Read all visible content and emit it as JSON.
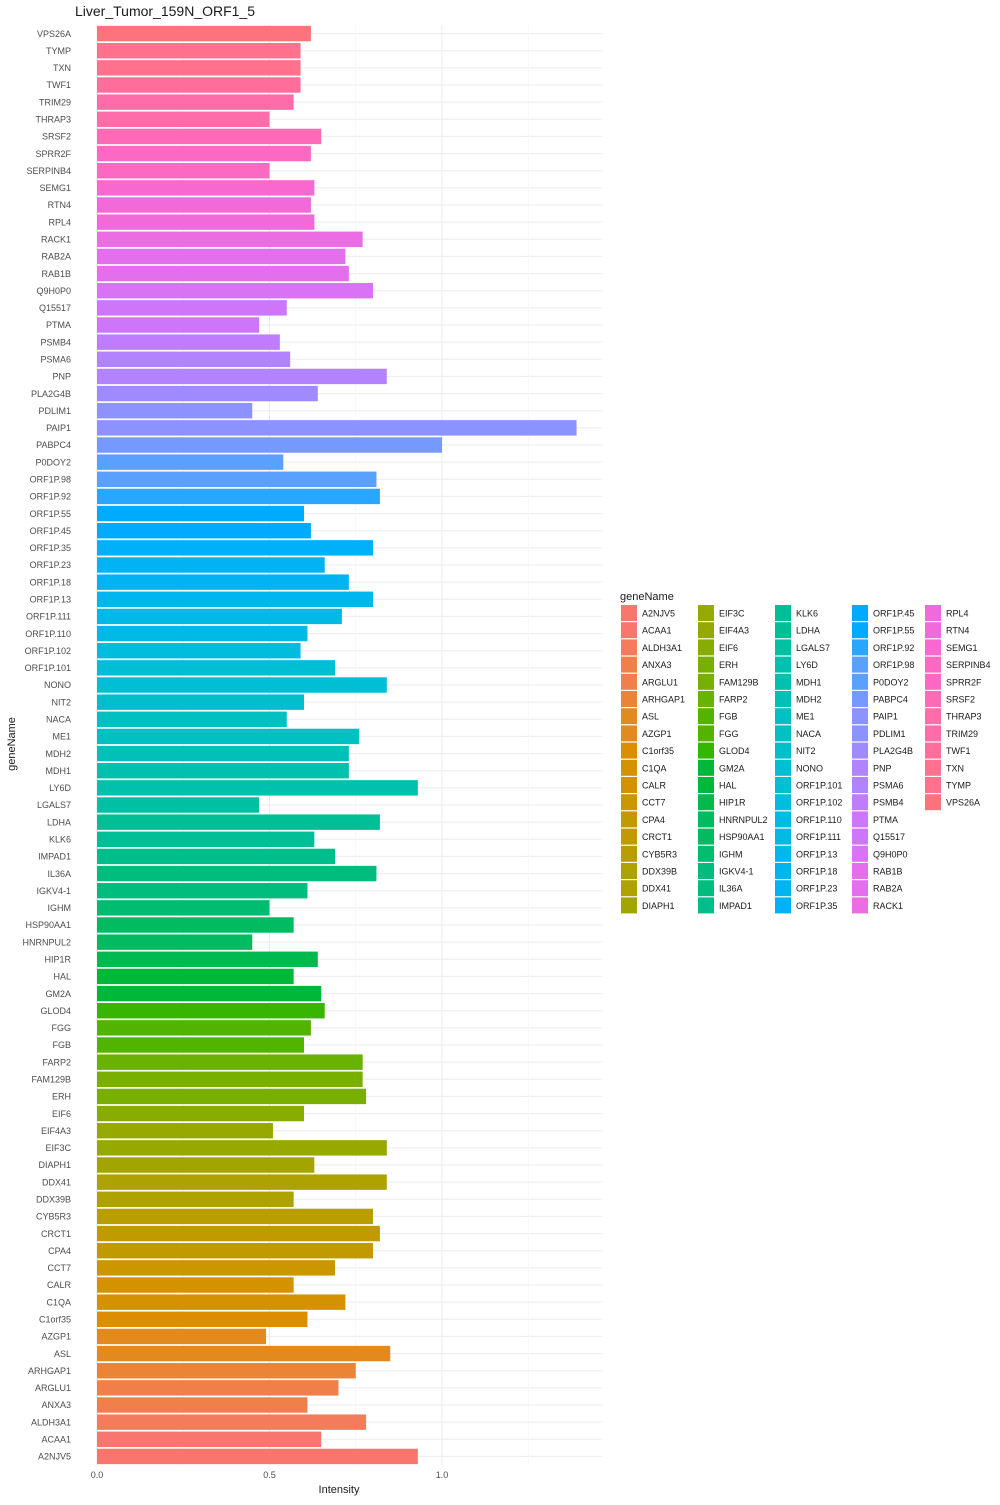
{
  "chart_data": {
    "type": "bar",
    "orientation": "horizontal",
    "title": "Liver_Tumor_159N_ORF1_5",
    "xlabel": "Intensity",
    "ylabel": "geneName",
    "xlim": [
      0,
      1.4
    ],
    "xticks": [
      "0.0",
      "0.5",
      "1.0"
    ],
    "grid": true,
    "legend": {
      "title": "geneName",
      "position": "right"
    },
    "categories": [
      "A2NJV5",
      "ACAA1",
      "ALDH3A1",
      "ANXA3",
      "ARGLU1",
      "ARHGAP1",
      "ASL",
      "AZGP1",
      "C1orf35",
      "C1QA",
      "CALR",
      "CCT7",
      "CPA4",
      "CRCT1",
      "CYB5R3",
      "DDX39B",
      "DDX41",
      "DIAPH1",
      "EIF3C",
      "EIF4A3",
      "EIF6",
      "ERH",
      "FAM129B",
      "FARP2",
      "FGB",
      "FGG",
      "GLOD4",
      "GM2A",
      "HAL",
      "HIP1R",
      "HNRNPUL2",
      "HSP90AA1",
      "IGHM",
      "IGKV4-1",
      "IL36A",
      "IMPAD1",
      "KLK6",
      "LDHA",
      "LGALS7",
      "LY6D",
      "MDH1",
      "MDH2",
      "ME1",
      "NACA",
      "NIT2",
      "NONO",
      "ORF1P.101",
      "ORF1P.102",
      "ORF1P.110",
      "ORF1P.111",
      "ORF1P.13",
      "ORF1P.18",
      "ORF1P.23",
      "ORF1P.35",
      "ORF1P.45",
      "ORF1P.55",
      "ORF1P.92",
      "ORF1P.98",
      "P0DOY2",
      "PABPC4",
      "PAIP1",
      "PDLIM1",
      "PLA2G4B",
      "PNP",
      "PSMA6",
      "PSMB4",
      "PTMA",
      "Q15517",
      "Q9H0P0",
      "RAB1B",
      "RAB2A",
      "RACK1",
      "RPL4",
      "RTN4",
      "SEMG1",
      "SERPINB4",
      "SPRR2F",
      "SRSF2",
      "THRAP3",
      "TRIM29",
      "TWF1",
      "TXN",
      "TYMP",
      "VPS26A"
    ],
    "values": [
      0.93,
      0.65,
      0.78,
      0.61,
      0.7,
      0.75,
      0.85,
      0.49,
      0.61,
      0.72,
      0.57,
      0.69,
      0.8,
      0.82,
      0.8,
      0.57,
      0.84,
      0.63,
      0.84,
      0.51,
      0.6,
      0.78,
      0.77,
      0.77,
      0.6,
      0.62,
      0.66,
      0.65,
      0.57,
      0.64,
      0.45,
      0.57,
      0.5,
      0.61,
      0.81,
      0.69,
      0.63,
      0.82,
      0.47,
      0.93,
      0.73,
      0.73,
      0.76,
      0.55,
      0.6,
      0.84,
      0.69,
      0.59,
      0.61,
      0.71,
      0.8,
      0.73,
      0.66,
      0.8,
      0.62,
      0.6,
      0.82,
      0.81,
      0.54,
      1.0,
      1.39,
      0.45,
      0.64,
      0.84,
      0.56,
      0.53,
      0.47,
      0.55,
      0.8,
      0.73,
      0.72,
      0.77,
      0.63,
      0.62,
      0.63,
      0.5,
      0.62,
      0.65,
      0.5,
      0.57,
      0.59,
      0.59,
      0.59,
      0.62
    ],
    "colors": [
      "#F8766D",
      "#F47B5C",
      "#F0804A",
      "#EA8537",
      "#E38A1E",
      "#DC8E00",
      "#D49200",
      "#CB9600",
      "#C19A00",
      "#B89E00",
      "#ADA200",
      "#A2A500",
      "#96A900",
      "#88AC00",
      "#79AF00",
      "#68B200",
      "#53B400",
      "#36B600",
      "#00B838",
      "#00BA4E",
      "#00BB60",
      "#00BC70",
      "#00BD7E",
      "#00BE8B",
      "#00BF97",
      "#00C0A3",
      "#00C0AE",
      "#00C0B8",
      "#00C0C2",
      "#00BFCB",
      "#00BED4",
      "#00BCDD",
      "#00BAE5",
      "#00B7ED",
      "#00B4F3",
      "#00B0F9",
      "#00ABFD",
      "#29A6FF",
      "#5AA0FF",
      "#7699FF",
      "#8C92FF",
      "#A08AFF",
      "#B183FF",
      "#C07CFF",
      "#CD76FA",
      "#D972F4",
      "#E36FEC",
      "#EB6CE3",
      "#F26ADA",
      "#F769CF",
      "#FB69C3",
      "#FD6AB6",
      "#FF6CA9",
      "#FF6E9B",
      "#FF718D",
      "#FC737E"
    ]
  }
}
